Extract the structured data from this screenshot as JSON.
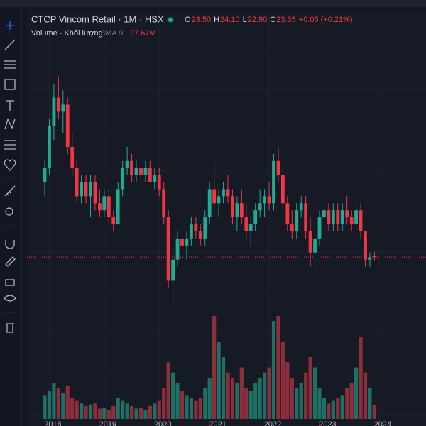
{
  "chart_data": {
    "type": "candlestick",
    "title": "CTCP Vincom Retail · 1M · HSX",
    "legend_values": [
      {
        "key": "O",
        "value": "23.50"
      },
      {
        "key": "H",
        "value": "24.10"
      },
      {
        "key": "L",
        "value": "22.90"
      },
      {
        "key": "C",
        "value": "23.35"
      }
    ],
    "change": "+0.05 (+0.21%)",
    "volume_title": "Volume - Khối lượng",
    "volume_indicator": "SMA 9",
    "volume_value": "27.67M",
    "year_labels": [
      "2018",
      "2019",
      "2020",
      "2021",
      "2022",
      "2023",
      "2024"
    ],
    "up_color": "#22ab94",
    "down_color": "#f23645",
    "ylim": [
      15,
      52
    ],
    "vol_ylim": [
      0,
      200
    ],
    "open": [
      34,
      36,
      42,
      46,
      44,
      45,
      39,
      36,
      32,
      34,
      32,
      34,
      31,
      30,
      32,
      29,
      28,
      33,
      36,
      37,
      35,
      36,
      35,
      36,
      34,
      35,
      33,
      29,
      20,
      23,
      26,
      25,
      26,
      28,
      27,
      26,
      29,
      33,
      31,
      32,
      33,
      32,
      29,
      31,
      29,
      27,
      28,
      30,
      31,
      32,
      31,
      37,
      35,
      31,
      28,
      27,
      30,
      31,
      27,
      24,
      26,
      29,
      30,
      28,
      30,
      28,
      30,
      29,
      28,
      30,
      27,
      23,
      23.5
    ],
    "high": [
      37,
      43,
      48,
      49,
      47,
      46,
      41,
      37,
      35,
      35,
      35,
      35,
      33,
      33,
      33,
      30,
      34,
      37,
      39,
      38,
      37,
      37,
      37,
      37,
      36,
      36,
      34,
      30,
      25,
      27,
      29,
      27,
      29,
      29,
      28,
      30,
      34,
      37,
      33,
      34,
      35,
      33,
      32,
      33,
      31,
      29,
      31,
      33,
      33,
      34,
      38,
      39,
      36,
      32,
      30,
      31,
      32,
      32,
      29,
      27,
      30,
      31,
      31,
      31,
      31,
      31,
      32,
      30,
      31,
      31,
      27,
      24,
      24.1
    ],
    "low": [
      32,
      35,
      40,
      43,
      41,
      38,
      35,
      31,
      31,
      31,
      29,
      30,
      29,
      29,
      28,
      27,
      28,
      32,
      35,
      34,
      34,
      34,
      34,
      34,
      33,
      32,
      28,
      19,
      16,
      22,
      24,
      23,
      25,
      26,
      25,
      25,
      28,
      30,
      29,
      31,
      31,
      28,
      27,
      28,
      26,
      25,
      27,
      29,
      29,
      30,
      30,
      34,
      30,
      27,
      26,
      26,
      29,
      26,
      22,
      21,
      25,
      28,
      27,
      27,
      27,
      27,
      28,
      27,
      27,
      26,
      22,
      22,
      22.9
    ],
    "close": [
      36,
      42,
      46,
      44,
      45,
      39,
      36,
      32,
      34,
      32,
      34,
      31,
      30,
      32,
      29,
      28,
      33,
      36,
      37,
      35,
      36,
      35,
      36,
      34,
      35,
      33,
      29,
      20,
      23,
      26,
      25,
      26,
      28,
      27,
      26,
      29,
      33,
      31,
      32,
      33,
      32,
      29,
      31,
      29,
      27,
      28,
      30,
      31,
      32,
      31,
      37,
      35,
      31,
      28,
      27,
      30,
      31,
      27,
      24,
      26,
      29,
      30,
      28,
      30,
      28,
      30,
      29,
      28,
      30,
      27,
      23,
      23.3,
      23.35
    ],
    "volume": [
      45,
      55,
      70,
      60,
      50,
      65,
      40,
      35,
      30,
      25,
      28,
      30,
      20,
      22,
      18,
      25,
      40,
      35,
      30,
      25,
      20,
      22,
      18,
      25,
      30,
      35,
      60,
      110,
      90,
      70,
      55,
      45,
      40,
      35,
      40,
      60,
      80,
      200,
      150,
      120,
      90,
      80,
      70,
      100,
      60,
      55,
      70,
      80,
      90,
      100,
      190,
      200,
      150,
      110,
      80,
      60,
      70,
      90,
      120,
      100,
      60,
      40,
      30,
      35,
      40,
      45,
      60,
      70,
      100,
      160,
      90,
      60,
      27.67
    ]
  }
}
